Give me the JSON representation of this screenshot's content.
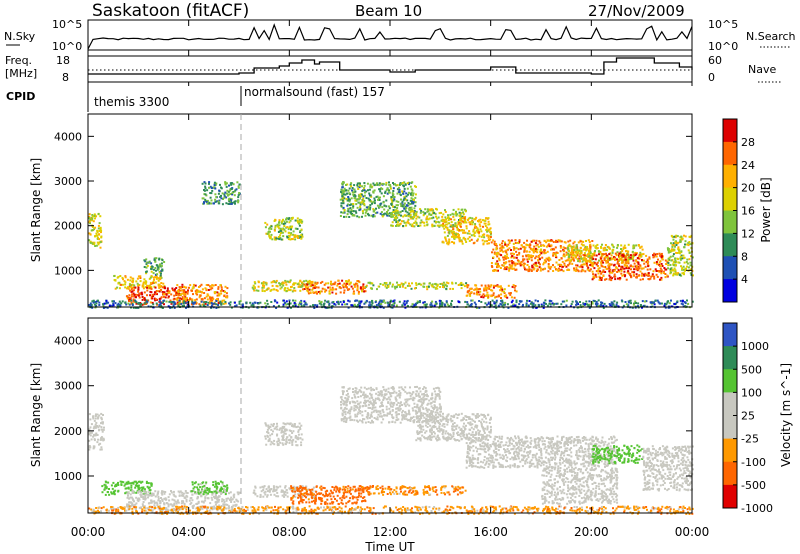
{
  "header": {
    "station": "Saskatoon (fitACF)",
    "beam": "Beam 10",
    "date": "27/Nov/2009"
  },
  "top_panels": {
    "nsky": {
      "label": "N.Sky",
      "ticks_left": [
        "10^5",
        "10^0"
      ],
      "ticks_right": [
        "10^5",
        "10^0"
      ],
      "right_label": "N.Search"
    },
    "freq": {
      "label_line1": "Freq.",
      "label_line2": "[MHz]",
      "ticks_left": [
        "18",
        "8"
      ],
      "ticks_right": [
        "60",
        "0"
      ],
      "right_label": "Nave"
    },
    "cpid": {
      "label": "CPID",
      "segments": [
        "themis 3300",
        "normalsound (fast) 157"
      ]
    }
  },
  "x_axis": {
    "label": "Time UT",
    "ticks": [
      "00:00",
      "04:00",
      "08:00",
      "12:00",
      "16:00",
      "20:00",
      "00:00"
    ]
  },
  "chart_data": [
    {
      "type": "heatmap",
      "name": "Power panel",
      "xlabel": "Time UT",
      "ylabel": "Slant Range [km]",
      "xlim": [
        0,
        24
      ],
      "ylim": [
        180,
        4500
      ],
      "yticks": [
        "1000",
        "2000",
        "3000",
        "4000"
      ],
      "colorbar": {
        "label": "Power [dB]",
        "ticks": [
          "28",
          "24",
          "20",
          "16",
          "12",
          "8",
          "4"
        ],
        "colors": [
          "#dd0000",
          "#ff6600",
          "#ffb000",
          "#ddd000",
          "#7fc43c",
          "#2e8b57",
          "#1e50b4",
          "#0000e0"
        ]
      },
      "regions": [
        {
          "t": [
            0.0,
            0.5
          ],
          "r": [
            1500,
            2300
          ],
          "v": 16
        },
        {
          "t": [
            1.0,
            3.0
          ],
          "r": [
            600,
            900
          ],
          "v": 18
        },
        {
          "t": [
            1.5,
            4.0
          ],
          "r": [
            250,
            650
          ],
          "v": 26
        },
        {
          "t": [
            3.5,
            5.5
          ],
          "r": [
            250,
            700
          ],
          "v": 22
        },
        {
          "t": [
            2.2,
            3.0
          ],
          "r": [
            900,
            1300
          ],
          "v": 10
        },
        {
          "t": [
            4.5,
            6.0
          ],
          "r": [
            2500,
            3000
          ],
          "v": 8
        },
        {
          "t": [
            7.0,
            8.5
          ],
          "r": [
            1700,
            2200
          ],
          "v": 14
        },
        {
          "t": [
            6.5,
            9.0
          ],
          "r": [
            550,
            800
          ],
          "v": 16
        },
        {
          "t": [
            8.5,
            11.0
          ],
          "r": [
            500,
            800
          ],
          "v": 22
        },
        {
          "t": [
            11.0,
            15.0
          ],
          "r": [
            600,
            750
          ],
          "v": 14
        },
        {
          "t": [
            10.0,
            13.0
          ],
          "r": [
            2200,
            3000
          ],
          "v": 10
        },
        {
          "t": [
            12.0,
            15.0
          ],
          "r": [
            2000,
            2400
          ],
          "v": 14
        },
        {
          "t": [
            14.0,
            16.0
          ],
          "r": [
            1600,
            2200
          ],
          "v": 18
        },
        {
          "t": [
            15.0,
            17.0
          ],
          "r": [
            400,
            700
          ],
          "v": 22
        },
        {
          "t": [
            16.0,
            20.0
          ],
          "r": [
            1000,
            1700
          ],
          "v": 22
        },
        {
          "t": [
            19.0,
            22.0
          ],
          "r": [
            1200,
            1600
          ],
          "v": 16
        },
        {
          "t": [
            20.0,
            23.0
          ],
          "r": [
            800,
            1400
          ],
          "v": 24
        },
        {
          "t": [
            23.0,
            24.0
          ],
          "r": [
            900,
            1800
          ],
          "v": 14
        },
        {
          "t": [
            0.0,
            24.0
          ],
          "r": [
            180,
            350
          ],
          "v": 6
        }
      ]
    },
    {
      "type": "heatmap",
      "name": "Velocity panel",
      "xlabel": "Time UT",
      "ylabel": "Slant Range [km]",
      "xlim": [
        0,
        24
      ],
      "ylim": [
        180,
        4500
      ],
      "yticks": [
        "1000",
        "2000",
        "3000",
        "4000"
      ],
      "colorbar": {
        "label": "Velocity [m s^-1]",
        "ticks": [
          "1000",
          "500",
          "100",
          "25",
          "-25",
          "-100",
          "-500",
          "-1000"
        ],
        "colors": [
          "#2e55c4",
          "#2e8b57",
          "#55c432",
          "#c8c8c0",
          "#c8c8c0",
          "#ff9900",
          "#ff6600",
          "#e00000"
        ]
      },
      "regions": [
        {
          "t": [
            0.0,
            0.6
          ],
          "r": [
            1600,
            2400
          ],
          "v": 0
        },
        {
          "t": [
            0.5,
            2.5
          ],
          "r": [
            600,
            900
          ],
          "v": 200
        },
        {
          "t": [
            1.5,
            6.0
          ],
          "r": [
            250,
            700
          ],
          "v": 0
        },
        {
          "t": [
            4.0,
            5.5
          ],
          "r": [
            600,
            900
          ],
          "v": 150
        },
        {
          "t": [
            6.5,
            9.0
          ],
          "r": [
            550,
            800
          ],
          "v": 0
        },
        {
          "t": [
            8.0,
            11.0
          ],
          "r": [
            400,
            800
          ],
          "v": -150
        },
        {
          "t": [
            11.0,
            15.0
          ],
          "r": [
            600,
            800
          ],
          "v": -80
        },
        {
          "t": [
            7.0,
            8.5
          ],
          "r": [
            1700,
            2200
          ],
          "v": 0
        },
        {
          "t": [
            10.0,
            14.0
          ],
          "r": [
            2200,
            3000
          ],
          "v": 0
        },
        {
          "t": [
            13.0,
            16.0
          ],
          "r": [
            1800,
            2400
          ],
          "v": 0
        },
        {
          "t": [
            15.0,
            21.0
          ],
          "r": [
            1200,
            1900
          ],
          "v": 0
        },
        {
          "t": [
            18.0,
            21.0
          ],
          "r": [
            400,
            1200
          ],
          "v": 0
        },
        {
          "t": [
            20.0,
            22.0
          ],
          "r": [
            1300,
            1700
          ],
          "v": 200
        },
        {
          "t": [
            22.0,
            24.0
          ],
          "r": [
            700,
            1700
          ],
          "v": 0
        },
        {
          "t": [
            0.0,
            24.0
          ],
          "r": [
            180,
            350
          ],
          "v": -60
        }
      ]
    }
  ]
}
